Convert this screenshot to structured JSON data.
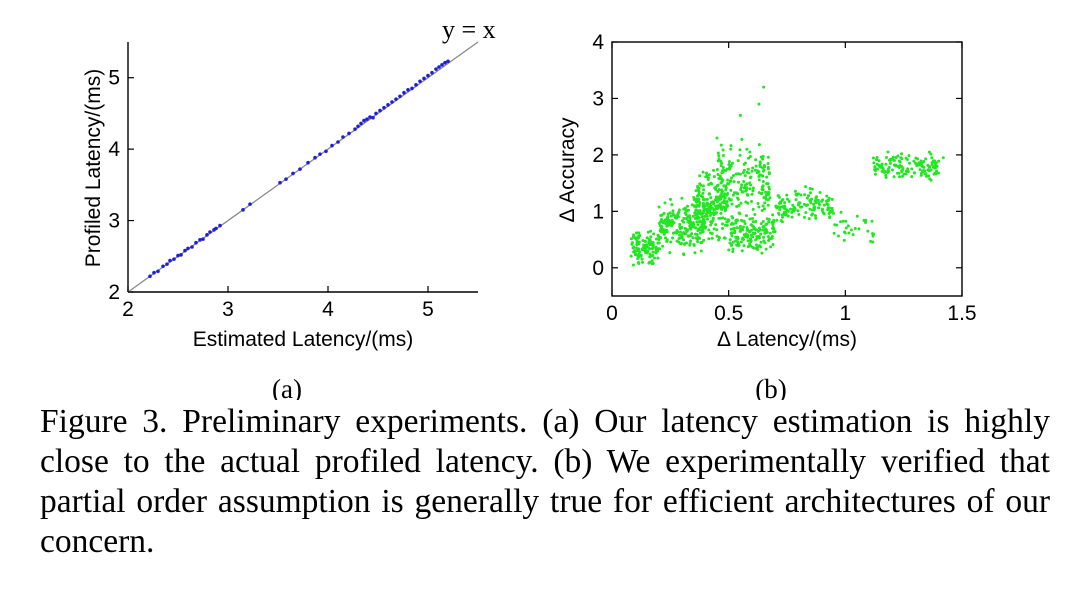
{
  "chart_data": [
    {
      "type": "scatter",
      "panel_label": "(a)",
      "xlabel": "Estimated Latency/(ms)",
      "ylabel": "Profiled Latency/(ms)",
      "xlim": [
        2,
        5.5
      ],
      "ylim": [
        2,
        5.5
      ],
      "xticks": [
        2,
        3,
        4,
        5
      ],
      "yticks": [
        2,
        3,
        4,
        5
      ],
      "box": false,
      "reference_line": {
        "label": "y = x",
        "from": [
          2,
          2
        ],
        "to": [
          5.5,
          5.5
        ]
      },
      "marker_color": "#1f1fd6",
      "points": [
        [
          2.22,
          2.22
        ],
        [
          2.26,
          2.27
        ],
        [
          2.3,
          2.29
        ],
        [
          2.35,
          2.36
        ],
        [
          2.39,
          2.39
        ],
        [
          2.42,
          2.44
        ],
        [
          2.46,
          2.46
        ],
        [
          2.5,
          2.51
        ],
        [
          2.53,
          2.52
        ],
        [
          2.57,
          2.58
        ],
        [
          2.6,
          2.61
        ],
        [
          2.64,
          2.63
        ],
        [
          2.68,
          2.69
        ],
        [
          2.72,
          2.73
        ],
        [
          2.75,
          2.74
        ],
        [
          2.79,
          2.8
        ],
        [
          2.82,
          2.84
        ],
        [
          2.86,
          2.87
        ],
        [
          2.88,
          2.89
        ],
        [
          2.92,
          2.93
        ],
        [
          3.15,
          3.15
        ],
        [
          3.22,
          3.23
        ],
        [
          3.52,
          3.53
        ],
        [
          3.58,
          3.58
        ],
        [
          3.65,
          3.66
        ],
        [
          3.72,
          3.72
        ],
        [
          3.8,
          3.81
        ],
        [
          3.87,
          3.88
        ],
        [
          3.92,
          3.93
        ],
        [
          3.98,
          3.97
        ],
        [
          4.04,
          4.05
        ],
        [
          4.1,
          4.1
        ],
        [
          4.15,
          4.17
        ],
        [
          4.21,
          4.22
        ],
        [
          4.27,
          4.28
        ],
        [
          4.3,
          4.32
        ],
        [
          4.33,
          4.36
        ],
        [
          4.36,
          4.4
        ],
        [
          4.39,
          4.42
        ],
        [
          4.42,
          4.45
        ],
        [
          4.45,
          4.44
        ],
        [
          4.48,
          4.5
        ],
        [
          4.52,
          4.54
        ],
        [
          4.56,
          4.58
        ],
        [
          4.6,
          4.62
        ],
        [
          4.64,
          4.66
        ],
        [
          4.68,
          4.7
        ],
        [
          4.72,
          4.74
        ],
        [
          4.76,
          4.79
        ],
        [
          4.8,
          4.83
        ],
        [
          4.84,
          4.85
        ],
        [
          4.88,
          4.9
        ],
        [
          4.92,
          4.95
        ],
        [
          4.96,
          4.99
        ],
        [
          5.0,
          5.03
        ],
        [
          5.04,
          5.07
        ],
        [
          5.08,
          5.12
        ],
        [
          5.11,
          5.15
        ],
        [
          5.14,
          5.18
        ],
        [
          5.17,
          5.21
        ],
        [
          5.2,
          5.23
        ]
      ]
    },
    {
      "type": "scatter",
      "panel_label": "(b)",
      "xlabel": "Δ Latency/(ms)",
      "ylabel": "Δ Accuracy",
      "xlim": [
        0,
        1.5
      ],
      "ylim": [
        -0.5,
        4
      ],
      "xticks": [
        0,
        0.5,
        1,
        1.5
      ],
      "yticks": [
        0,
        1,
        2,
        3,
        4
      ],
      "box": true,
      "marker_color": "#22e622",
      "clusters": [
        {
          "x_range": [
            0.08,
            0.2
          ],
          "y_center": 0.35,
          "y_spread": 0.4,
          "count": 120
        },
        {
          "x_range": [
            0.2,
            0.4
          ],
          "y_center": 0.75,
          "y_spread": 0.6,
          "count": 220
        },
        {
          "x_range": [
            0.35,
            0.5
          ],
          "y_center": 1.1,
          "y_spread": 0.8,
          "count": 200
        },
        {
          "x_range": [
            0.45,
            0.68
          ],
          "y_center": 1.5,
          "y_spread": 0.9,
          "count": 180
        },
        {
          "x_range": [
            0.5,
            0.7
          ],
          "y_center": 0.6,
          "y_spread": 0.5,
          "count": 160
        },
        {
          "x_range": [
            0.7,
            0.95
          ],
          "y_center": 1.1,
          "y_spread": 0.4,
          "count": 130
        },
        {
          "x_range": [
            0.95,
            1.15
          ],
          "y_center": 0.7,
          "y_spread": 0.4,
          "count": 30
        },
        {
          "x_range": [
            1.12,
            1.4
          ],
          "y_center": 1.8,
          "y_spread": 0.35,
          "count": 140
        }
      ],
      "outliers": [
        [
          0.65,
          3.2
        ],
        [
          0.63,
          2.9
        ],
        [
          0.55,
          2.7
        ],
        [
          0.45,
          2.3
        ],
        [
          1.42,
          1.95
        ],
        [
          1.36,
          2.05
        ]
      ]
    }
  ],
  "caption": {
    "text": "Figure 3. Preliminary experiments. (a) Our latency estimation is highly close to the actual profiled latency. (b) We experimentally verified that partial order assumption is generally true for efficient architectures of our concern."
  }
}
